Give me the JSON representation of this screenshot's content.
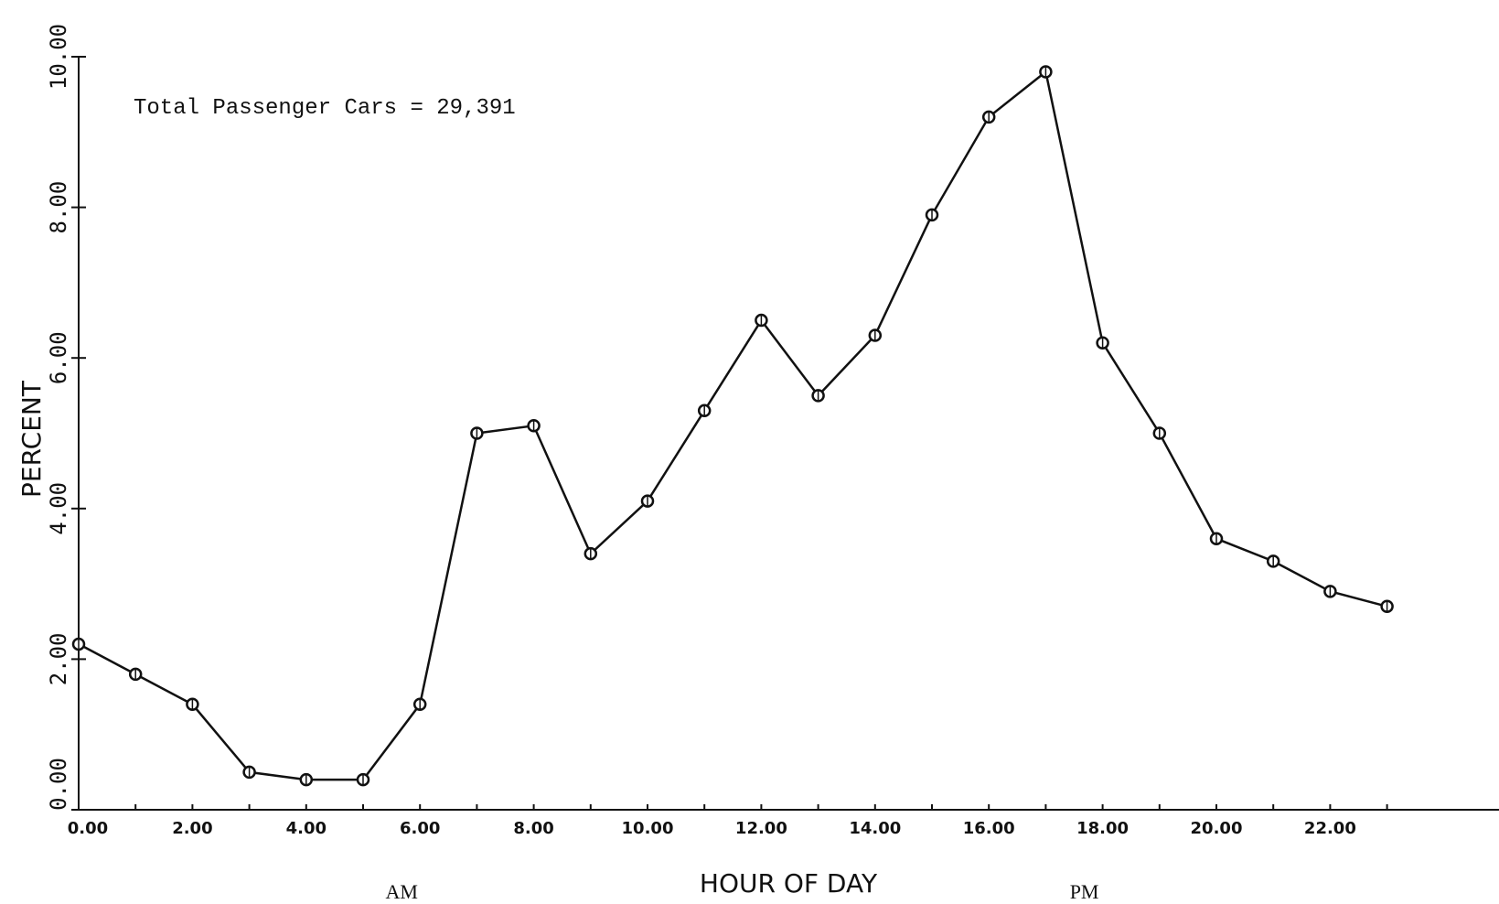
{
  "chart_data": {
    "type": "line",
    "annotation": "Total Passenger Cars = 29,391",
    "xlabel": "HOUR OF DAY",
    "ylabel": "PERCENT",
    "xlim": [
      0,
      24
    ],
    "ylim": [
      0,
      10
    ],
    "x_ticks": [
      0,
      2,
      4,
      6,
      8,
      10,
      12,
      14,
      16,
      18,
      20,
      22
    ],
    "x_tick_labels": [
      "0.00",
      "2.00",
      "4.00",
      "6.00",
      "8.00",
      "10.00",
      "12.00",
      "14.00",
      "16.00",
      "18.00",
      "20.00",
      "22.00"
    ],
    "y_ticks": [
      0,
      2,
      4,
      6,
      8,
      10
    ],
    "y_tick_labels": [
      "0.00",
      "2.00",
      "4.00",
      "6.00",
      "8.00",
      "10.00"
    ],
    "period_labels": [
      {
        "text": "AM",
        "x": 6
      },
      {
        "text": "PM",
        "x": 18
      }
    ],
    "grid": false,
    "marker": "open-circle",
    "x": [
      0,
      1,
      2,
      3,
      4,
      5,
      6,
      7,
      8,
      9,
      10,
      11,
      12,
      13,
      14,
      15,
      16,
      17,
      18,
      19,
      20,
      21,
      22,
      23
    ],
    "y": [
      2.2,
      1.8,
      1.4,
      0.5,
      0.4,
      0.4,
      1.4,
      5.0,
      5.1,
      3.4,
      4.1,
      5.3,
      6.5,
      5.5,
      6.3,
      7.9,
      9.2,
      9.8,
      6.2,
      5.0,
      3.6,
      3.3,
      2.9,
      2.7
    ],
    "color": "#111111"
  }
}
